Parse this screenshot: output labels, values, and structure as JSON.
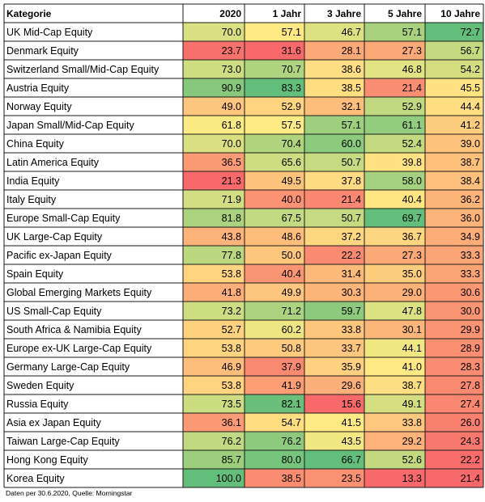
{
  "chart_data": {
    "type": "heatmap",
    "row_header": "Kategorie",
    "columns": [
      "2020",
      "1 Jahr",
      "3 Jahre",
      "5 Jahre",
      "10 Jahre"
    ],
    "rows": [
      {
        "name": "UK Mid-Cap Equity",
        "values": [
          70.0,
          57.1,
          46.7,
          57.1,
          72.7
        ]
      },
      {
        "name": "Denmark Equity",
        "values": [
          23.7,
          31.6,
          28.1,
          27.3,
          56.7
        ]
      },
      {
        "name": "Switzerland Small/Mid-Cap Equity",
        "values": [
          73.0,
          70.7,
          38.6,
          46.8,
          54.2
        ]
      },
      {
        "name": "Austria Equity",
        "values": [
          90.9,
          83.3,
          38.5,
          21.4,
          45.5
        ]
      },
      {
        "name": "Norway Equity",
        "values": [
          49.0,
          52.9,
          32.1,
          52.9,
          44.4
        ]
      },
      {
        "name": "Japan Small/Mid-Cap Equity",
        "values": [
          61.8,
          57.5,
          57.1,
          61.1,
          41.2
        ]
      },
      {
        "name": "China Equity",
        "values": [
          70.0,
          70.4,
          60.0,
          52.4,
          39.0
        ]
      },
      {
        "name": "Latin America Equity",
        "values": [
          36.5,
          65.6,
          50.7,
          39.8,
          38.7
        ]
      },
      {
        "name": "India Equity",
        "values": [
          21.3,
          49.5,
          37.8,
          58.0,
          38.4
        ]
      },
      {
        "name": "Italy Equity",
        "values": [
          71.9,
          40.0,
          21.4,
          40.4,
          36.2
        ]
      },
      {
        "name": "Europe Small-Cap Equity",
        "values": [
          81.8,
          67.5,
          50.7,
          69.7,
          36.0
        ]
      },
      {
        "name": "UK Large-Cap Equity",
        "values": [
          43.8,
          48.6,
          37.2,
          36.7,
          34.9
        ]
      },
      {
        "name": "Pacific ex-Japan Equity",
        "values": [
          77.8,
          50.0,
          22.2,
          27.3,
          33.3
        ]
      },
      {
        "name": "Spain Equity",
        "values": [
          53.8,
          40.4,
          31.4,
          35.0,
          33.3
        ]
      },
      {
        "name": "Global Emerging Markets Equity",
        "values": [
          41.8,
          49.9,
          30.3,
          29.0,
          30.6
        ]
      },
      {
        "name": "US Small-Cap Equity",
        "values": [
          73.2,
          71.2,
          59.7,
          47.8,
          30.0
        ]
      },
      {
        "name": "South Africa & Namibia Equity",
        "values": [
          52.7,
          60.2,
          33.8,
          30.1,
          29.9
        ]
      },
      {
        "name": "Europe ex-UK Large-Cap Equity",
        "values": [
          53.8,
          50.8,
          33.7,
          44.1,
          28.9
        ]
      },
      {
        "name": "Germany Large-Cap Equity",
        "values": [
          46.9,
          37.9,
          35.9,
          41.0,
          28.3
        ]
      },
      {
        "name": "Sweden Equity",
        "values": [
          53.8,
          41.9,
          29.6,
          38.7,
          27.8
        ]
      },
      {
        "name": "Russia Equity",
        "values": [
          73.5,
          82.1,
          15.6,
          49.1,
          27.4
        ]
      },
      {
        "name": "Asia ex Japan Equity",
        "values": [
          36.1,
          54.7,
          41.5,
          33.8,
          26.0
        ]
      },
      {
        "name": "Taiwan Large-Cap Equity",
        "values": [
          76.2,
          76.2,
          43.5,
          29.2,
          24.3
        ]
      },
      {
        "name": "Hong Kong Equity",
        "values": [
          85.7,
          80.0,
          66.7,
          52.6,
          22.2
        ]
      },
      {
        "name": "Korea Equity",
        "values": [
          100.0,
          38.5,
          23.5,
          13.3,
          21.4
        ]
      }
    ],
    "footnote": "Daten per 30.6.2020, Quelle: Morningstar",
    "colors": {
      "low": "#f8696b",
      "mid": "#ffeb84",
      "high": "#63be7b"
    }
  }
}
